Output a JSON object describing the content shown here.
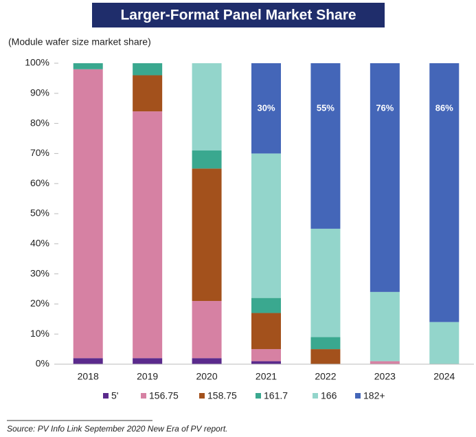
{
  "chart_data": {
    "type": "stacked_bar",
    "title": "Larger-Format Panel Market Share",
    "subtitle": "(Module wafer size market share)",
    "source": "Source: PV Info Link September 2020 New Era of PV report.",
    "categories": [
      "2018",
      "2019",
      "2020",
      "2021",
      "2022",
      "2023",
      "2024"
    ],
    "series": [
      {
        "name": "5'",
        "color": "#5a2a8c",
        "values": [
          2,
          2,
          2,
          1,
          0,
          0,
          0
        ]
      },
      {
        "name": "156.75",
        "color": "#d681a3",
        "values": [
          96,
          82,
          19,
          4,
          0,
          1,
          0
        ]
      },
      {
        "name": "158.75",
        "color": "#a3511c",
        "values": [
          0,
          12,
          44,
          12,
          5,
          0,
          0
        ]
      },
      {
        "name": "161.7",
        "color": "#3aa88f",
        "values": [
          2,
          4,
          6,
          5,
          4,
          0,
          0
        ]
      },
      {
        "name": "166",
        "color": "#93d5cb",
        "values": [
          0,
          0,
          29,
          48,
          36,
          23,
          14
        ]
      },
      {
        "name": "182+",
        "color": "#4466b8",
        "values": [
          0,
          0,
          0,
          30,
          55,
          76,
          86
        ],
        "value_labels": [
          null,
          null,
          null,
          "30%",
          "55%",
          "76%",
          "86%"
        ]
      }
    ],
    "ylim": [
      0,
      100
    ],
    "yticks": [
      {
        "value": 0,
        "label": "0%"
      },
      {
        "value": 10,
        "label": "10%"
      },
      {
        "value": 20,
        "label": "20%"
      },
      {
        "value": 30,
        "label": "30%"
      },
      {
        "value": 40,
        "label": "40%"
      },
      {
        "value": 50,
        "label": "50%"
      },
      {
        "value": 60,
        "label": "60%"
      },
      {
        "value": 70,
        "label": "70%"
      },
      {
        "value": 80,
        "label": "80%"
      },
      {
        "value": 90,
        "label": "90%"
      },
      {
        "value": 100,
        "label": "100%"
      }
    ],
    "grid": false,
    "legend": "bottom"
  }
}
